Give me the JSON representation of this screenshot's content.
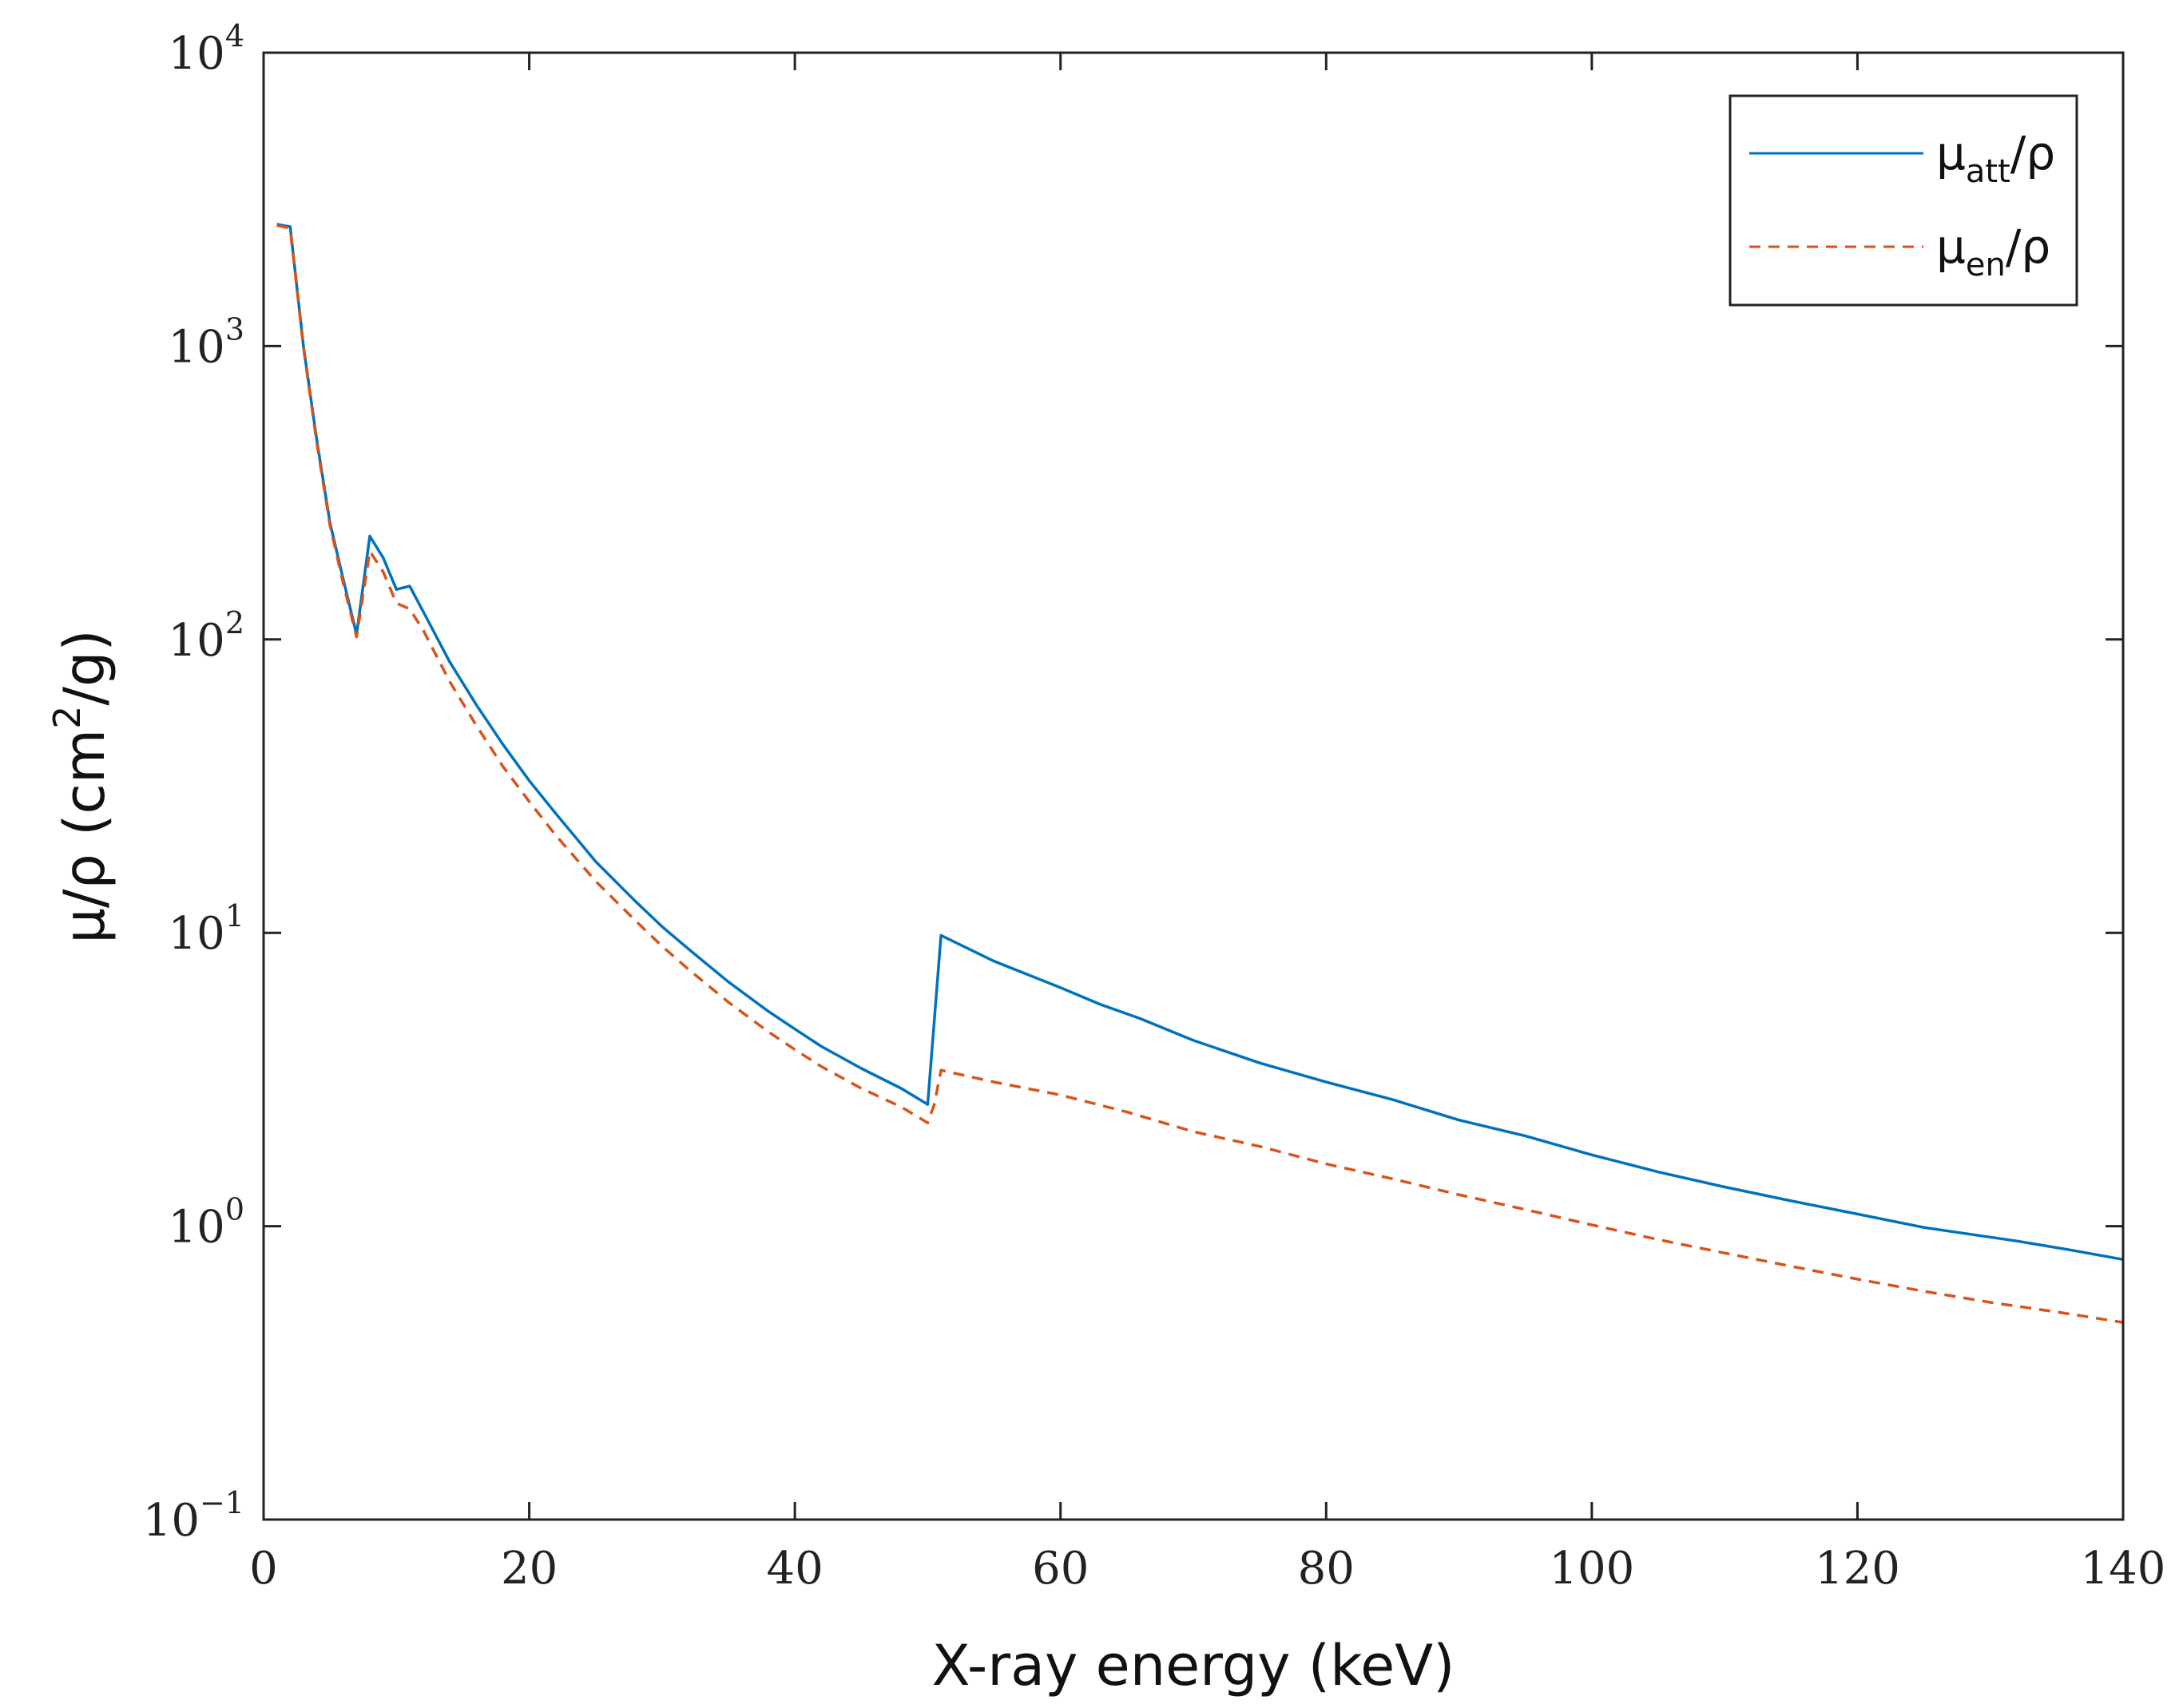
{
  "chart_data": {
    "type": "line",
    "xlabel": "X-ray energy (keV)",
    "ylabel_prefix": "μ/ρ (cm",
    "ylabel_sup": "2",
    "ylabel_suffix": "/g)",
    "xlim": [
      0,
      140
    ],
    "ylim": [
      0.1,
      10000
    ],
    "yscale": "log",
    "grid": false,
    "legend_position": "top-right",
    "x_ticks": [
      {
        "value": 0,
        "label": "0"
      },
      {
        "value": 20,
        "label": "20"
      },
      {
        "value": 40,
        "label": "40"
      },
      {
        "value": 60,
        "label": "60"
      },
      {
        "value": 80,
        "label": "80"
      },
      {
        "value": 100,
        "label": "100"
      },
      {
        "value": 120,
        "label": "120"
      },
      {
        "value": 140,
        "label": "140"
      }
    ],
    "y_ticks": [
      {
        "value": 0.1,
        "base": "10",
        "exp": "−1"
      },
      {
        "value": 1,
        "base": "10",
        "exp": "0"
      },
      {
        "value": 10,
        "base": "10",
        "exp": "1"
      },
      {
        "value": 100,
        "base": "10",
        "exp": "2"
      },
      {
        "value": 1000,
        "base": "10",
        "exp": "3"
      },
      {
        "value": 10000,
        "base": "10",
        "exp": "4"
      }
    ],
    "series": [
      {
        "name": "μatt/ρ",
        "label_main": "μ",
        "label_sub": "att",
        "label_tail": "/ρ",
        "color": "#0072BD",
        "dash": "solid",
        "points": [
          [
            1,
            2600
          ],
          [
            2,
            2550
          ],
          [
            3,
            1000
          ],
          [
            4,
            480
          ],
          [
            5,
            250
          ],
          [
            6,
            160
          ],
          [
            7,
            104
          ],
          [
            8,
            225
          ],
          [
            9,
            190
          ],
          [
            10,
            148
          ],
          [
            11,
            152
          ],
          [
            12,
            125
          ],
          [
            14,
            84
          ],
          [
            16,
            60
          ],
          [
            18,
            44
          ],
          [
            20,
            33
          ],
          [
            22,
            25.5
          ],
          [
            25,
            17.5
          ],
          [
            28,
            12.8
          ],
          [
            30,
            10.5
          ],
          [
            32,
            8.8
          ],
          [
            35,
            6.8
          ],
          [
            38,
            5.4
          ],
          [
            40,
            4.7
          ],
          [
            42,
            4.1
          ],
          [
            45,
            3.45
          ],
          [
            48,
            2.95
          ],
          [
            50,
            2.6
          ],
          [
            51,
            9.8
          ],
          [
            55,
            8.0
          ],
          [
            60,
            6.5
          ],
          [
            63,
            5.7
          ],
          [
            66,
            5.1
          ],
          [
            70,
            4.3
          ],
          [
            75,
            3.6
          ],
          [
            80,
            3.1
          ],
          [
            85,
            2.7
          ],
          [
            90,
            2.3
          ],
          [
            95,
            2.03
          ],
          [
            100,
            1.75
          ],
          [
            105,
            1.53
          ],
          [
            110,
            1.36
          ],
          [
            115,
            1.22
          ],
          [
            120,
            1.1
          ],
          [
            125,
            0.99
          ],
          [
            132,
            0.89
          ],
          [
            136,
            0.83
          ],
          [
            140,
            0.77
          ]
        ]
      },
      {
        "name": "μen/ρ",
        "label_main": "μ",
        "label_sub": "en",
        "label_tail": "/ρ",
        "color": "#D95319",
        "dash": "dashed",
        "points": [
          [
            1,
            2580
          ],
          [
            2,
            2520
          ],
          [
            3,
            990
          ],
          [
            4,
            470
          ],
          [
            5,
            245
          ],
          [
            6,
            155
          ],
          [
            7,
            102
          ],
          [
            8,
            200
          ],
          [
            9,
            170
          ],
          [
            10,
            133
          ],
          [
            11,
            127
          ],
          [
            12,
            108
          ],
          [
            14,
            72
          ],
          [
            16,
            51
          ],
          [
            18,
            37
          ],
          [
            20,
            28
          ],
          [
            22,
            21.5
          ],
          [
            25,
            15
          ],
          [
            28,
            11
          ],
          [
            30,
            9.0
          ],
          [
            32,
            7.5
          ],
          [
            35,
            5.8
          ],
          [
            38,
            4.6
          ],
          [
            40,
            4.0
          ],
          [
            42,
            3.5
          ],
          [
            45,
            2.95
          ],
          [
            48,
            2.55
          ],
          [
            50,
            2.25
          ],
          [
            50.5,
            2.6
          ],
          [
            51,
            3.4
          ],
          [
            55,
            3.1
          ],
          [
            60,
            2.8
          ],
          [
            65,
            2.45
          ],
          [
            70,
            2.1
          ],
          [
            75,
            1.87
          ],
          [
            80,
            1.63
          ],
          [
            85,
            1.45
          ],
          [
            90,
            1.28
          ],
          [
            95,
            1.14
          ],
          [
            100,
            1.01
          ],
          [
            105,
            0.9
          ],
          [
            110,
            0.81
          ],
          [
            115,
            0.73
          ],
          [
            120,
            0.66
          ],
          [
            125,
            0.6
          ],
          [
            130,
            0.55
          ],
          [
            135,
            0.51
          ],
          [
            140,
            0.47
          ]
        ]
      }
    ]
  }
}
